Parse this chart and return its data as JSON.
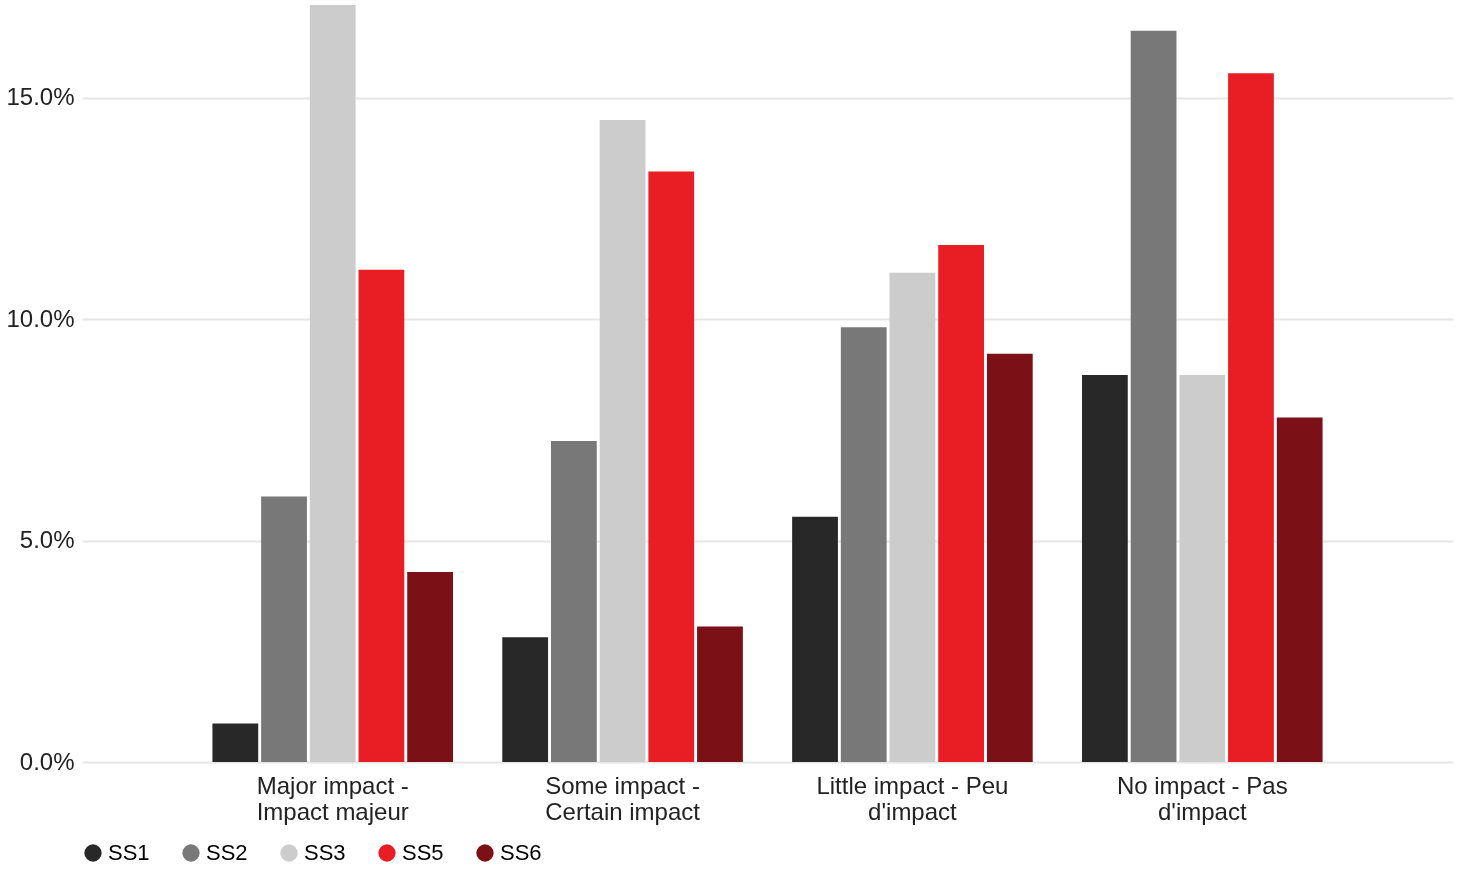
{
  "chart_data": {
    "type": "bar",
    "categories": [
      "Major impact - Impact majeur",
      "Some impact - Certain impact",
      "Little impact - Peu d'impact",
      "No impact - Pas d'impact"
    ],
    "series": [
      {
        "name": "SS1",
        "color": "#282828",
        "values": [
          0.87,
          2.82,
          5.54,
          8.74
        ]
      },
      {
        "name": "SS2",
        "color": "#787878",
        "values": [
          6.0,
          7.25,
          9.82,
          16.52
        ]
      },
      {
        "name": "SS3",
        "color": "#cccccc",
        "values": [
          17.1,
          14.5,
          11.05,
          8.74
        ]
      },
      {
        "name": "SS5",
        "color": "#e81e24",
        "values": [
          11.12,
          13.34,
          11.68,
          15.56
        ]
      },
      {
        "name": "SS6",
        "color": "#7b1016",
        "values": [
          4.29,
          3.06,
          9.22,
          7.78
        ]
      }
    ],
    "ylim": [
      0,
      17.1
    ],
    "yticks": [
      {
        "value": 0,
        "label": "0.0%"
      },
      {
        "value": 5,
        "label": "5.0%"
      },
      {
        "value": 10,
        "label": "10.0%"
      },
      {
        "value": 15,
        "label": "15.0%"
      }
    ],
    "grid": "y",
    "legend": "bottom left"
  }
}
